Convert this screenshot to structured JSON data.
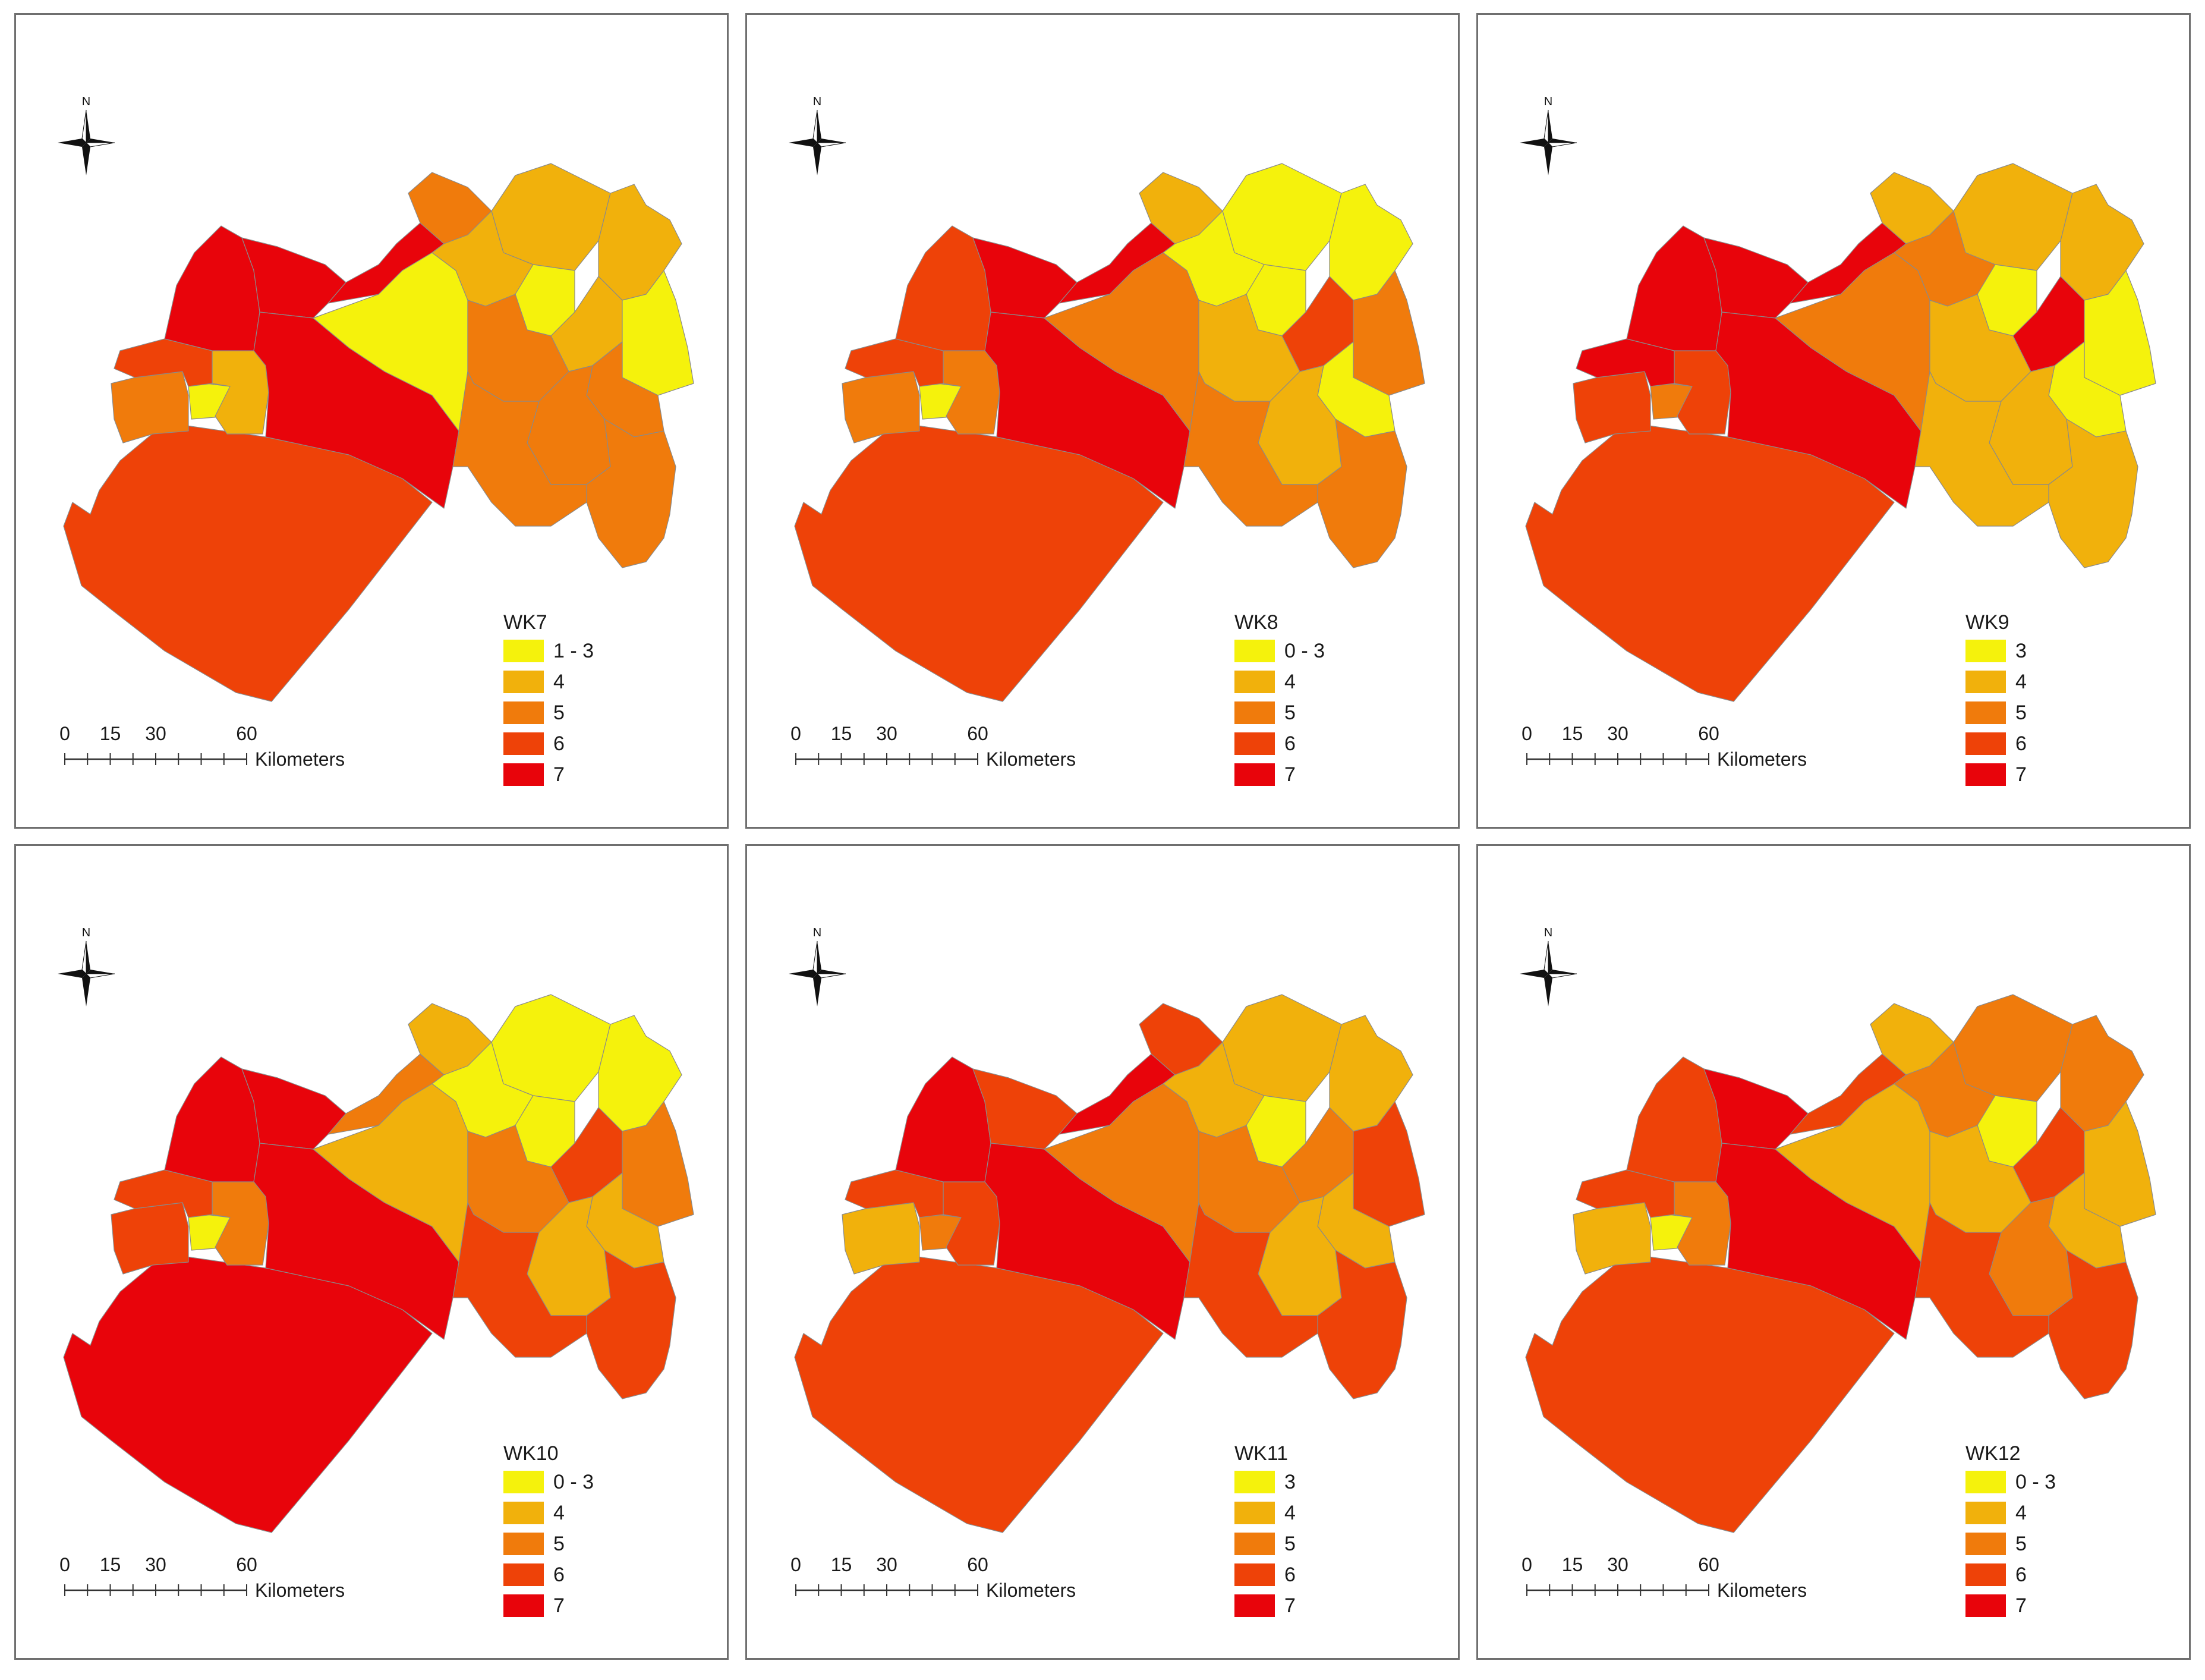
{
  "colors": {
    "1": "#f5f20c",
    "2": "#f1b10c",
    "3": "#f07b0c",
    "4": "#ee4208",
    "5": "#e8040b",
    "boundary": "#8a8a8a",
    "frame": "#6f6f6f"
  },
  "compass": {
    "north_label": "N"
  },
  "scale_bar": {
    "ticks": [
      "0",
      "15",
      "30",
      "60"
    ],
    "unit": "Kilometers"
  },
  "legend_classes": [
    "class 1",
    "class 2",
    "class 3",
    "class 4",
    "class 5"
  ],
  "panels": [
    {
      "title": "WK7",
      "legend": [
        "1 - 3",
        "4",
        "5",
        "6",
        "7"
      ],
      "regions": {
        "sw": 4,
        "coastTop": 3,
        "yel": 1,
        "smallW": 2,
        "wMid": 4,
        "nwA": 5,
        "nwB": 5,
        "mid": 5,
        "mid2": 5,
        "centerBig": 1,
        "ne1": 3,
        "ne2": 2,
        "ne3": 2,
        "ne4": 2,
        "neSmall": 1,
        "eMid": 2,
        "eMid2": 3,
        "eMid3": 1,
        "e1": 3,
        "e2": 3,
        "se": 3,
        "eLower": 3
      }
    },
    {
      "title": "WK8",
      "legend": [
        "0 - 3",
        "4",
        "5",
        "6",
        "7"
      ],
      "regions": {
        "sw": 4,
        "coastTop": 3,
        "yel": 1,
        "smallW": 3,
        "wMid": 4,
        "nwA": 4,
        "nwB": 5,
        "mid": 5,
        "mid2": 5,
        "centerBig": 3,
        "ne1": 2,
        "ne2": 1,
        "ne3": 1,
        "ne4": 1,
        "neSmall": 1,
        "eMid": 4,
        "eMid2": 2,
        "eMid3": 3,
        "e1": 1,
        "e2": 2,
        "se": 3,
        "eLower": 3
      }
    },
    {
      "title": "WK9",
      "legend": [
        "3",
        "4",
        "5",
        "6",
        "7"
      ],
      "regions": {
        "sw": 4,
        "coastTop": 4,
        "yel": 3,
        "smallW": 4,
        "wMid": 5,
        "nwA": 5,
        "nwB": 5,
        "mid": 5,
        "mid2": 5,
        "centerBig": 3,
        "ne1": 2,
        "ne2": 2,
        "ne3": 2,
        "ne4": 3,
        "neSmall": 1,
        "eMid": 5,
        "eMid2": 2,
        "eMid3": 1,
        "e1": 1,
        "e2": 2,
        "se": 2,
        "eLower": 2
      }
    },
    {
      "title": "WK10",
      "legend": [
        "0 - 3",
        "4",
        "5",
        "6",
        "7"
      ],
      "regions": {
        "sw": 5,
        "coastTop": 4,
        "yel": 1,
        "smallW": 3,
        "wMid": 4,
        "nwA": 5,
        "nwB": 5,
        "mid": 5,
        "mid2": 3,
        "centerBig": 2,
        "ne1": 2,
        "ne2": 1,
        "ne3": 1,
        "ne4": 1,
        "neSmall": 1,
        "eMid": 4,
        "eMid2": 3,
        "eMid3": 3,
        "e1": 2,
        "e2": 2,
        "se": 4,
        "eLower": 4
      }
    },
    {
      "title": "WK11",
      "legend": [
        "3",
        "4",
        "5",
        "6",
        "7"
      ],
      "regions": {
        "sw": 4,
        "coastTop": 2,
        "yel": 3,
        "smallW": 4,
        "wMid": 4,
        "nwA": 5,
        "nwB": 4,
        "mid": 5,
        "mid2": 5,
        "centerBig": 3,
        "ne1": 4,
        "ne2": 2,
        "ne3": 2,
        "ne4": 2,
        "neSmall": 1,
        "eMid": 3,
        "eMid2": 3,
        "eMid3": 4,
        "e1": 2,
        "e2": 2,
        "se": 4,
        "eLower": 4
      }
    },
    {
      "title": "WK12",
      "legend": [
        "0 - 3",
        "4",
        "5",
        "6",
        "7"
      ],
      "regions": {
        "sw": 4,
        "coastTop": 2,
        "yel": 1,
        "smallW": 3,
        "wMid": 4,
        "nwA": 4,
        "nwB": 5,
        "mid": 5,
        "mid2": 4,
        "centerBig": 2,
        "ne1": 2,
        "ne2": 3,
        "ne3": 3,
        "ne4": 3,
        "neSmall": 1,
        "eMid": 4,
        "eMid2": 2,
        "eMid3": 2,
        "e1": 2,
        "e2": 3,
        "se": 4,
        "eLower": 4
      }
    }
  ]
}
